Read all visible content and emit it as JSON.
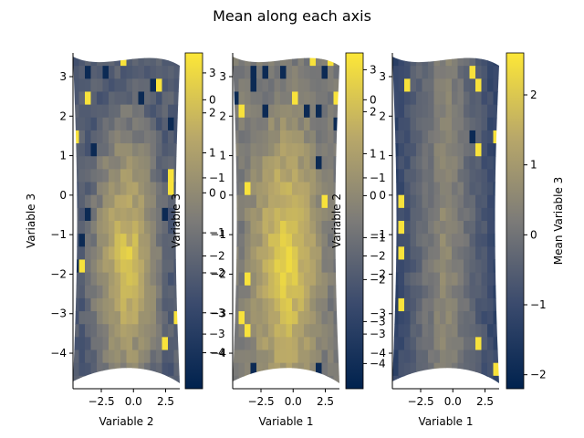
{
  "title": "Mean along each axis",
  "colors": {
    "colormap": "cividis",
    "stops": [
      "#00224e",
      "#3a4a6d",
      "#7c7b78",
      "#b9a869",
      "#fde737"
    ],
    "panel_base": [
      "#d7c05d",
      "#d8c15c",
      "#9a9070"
    ]
  },
  "chart_data": [
    {
      "type": "heatmap",
      "panel": 1,
      "xlabel": "Variable 2",
      "ylabel": "Variable 3",
      "x_ticks": [
        "−2.5",
        "0.0",
        "2.5"
      ],
      "x_tick_values": [
        -2.5,
        0.0,
        2.5
      ],
      "y_ticks": [
        "3",
        "2",
        "1",
        "0",
        "−1",
        "−2",
        "−3",
        "−4"
      ],
      "y_tick_values": [
        3,
        2,
        1,
        0,
        -1,
        -2,
        -3,
        -4
      ],
      "xlim": [
        -4.7,
        3.6
      ],
      "ylim": [
        -4.9,
        3.6
      ],
      "colorbar": {
        "label": "Variable 3",
        "ticks": [
          "3",
          "2",
          "1",
          "0",
          "−1",
          "−2",
          "−3",
          "−4"
        ],
        "tick_values": [
          3,
          2,
          1,
          0,
          -1,
          -2,
          -3,
          -4
        ],
        "range": [
          -4.9,
          3.5
        ],
        "overlap_ticks": [
          "0",
          "−1",
          "−2",
          "−3"
        ],
        "overlap_tick_values": [
          0,
          -1,
          -2,
          -3
        ],
        "overlap_range": [
          -3.7,
          0.6
        ]
      },
      "grid": false,
      "pattern": "bright yellow ellipse centered near (0, −1), fading to grey-olive at the edges with scattered dark outliers"
    },
    {
      "type": "heatmap",
      "panel": 2,
      "xlabel": "Variable 1",
      "ylabel": "",
      "x_ticks": [
        "−2.5",
        "0.0",
        "2.5"
      ],
      "x_tick_values": [
        -2.5,
        0.0,
        2.5
      ],
      "y_ticks": [
        "3",
        "2",
        "1",
        "0",
        "−1",
        "−2",
        "−3",
        "−4"
      ],
      "y_tick_values": [
        3,
        2,
        1,
        0,
        -1,
        -2,
        -3,
        -4
      ],
      "xlim": [
        -4.7,
        3.6
      ],
      "ylim": [
        -4.9,
        3.6
      ],
      "colorbar": {
        "label": "Variable 2",
        "ticks": [
          "3",
          "2",
          "1",
          "0",
          "−1",
          "−2",
          "−3",
          "−4"
        ],
        "tick_values": [
          3,
          2,
          1,
          0,
          -1,
          -2,
          -3,
          -4
        ],
        "range": [
          -4.6,
          3.4
        ],
        "overlap_ticks": [
          "0",
          "−1",
          "−2",
          "−3"
        ],
        "overlap_tick_values": [
          0,
          -1,
          -2,
          -3
        ],
        "overlap_range": [
          -3.7,
          0.6
        ]
      },
      "grid": false,
      "pattern": "bright yellow ellipse centered near (0, −1), brighter overall than panel 1"
    },
    {
      "type": "heatmap",
      "panel": 3,
      "xlabel": "Variable 1",
      "ylabel": "",
      "x_ticks": [
        "−2.5",
        "0.0",
        "2.5"
      ],
      "x_tick_values": [
        -2.5,
        0.0,
        2.5
      ],
      "y_ticks": [
        "3",
        "2",
        "1",
        "0",
        "−1",
        "−2",
        "−3",
        "−4"
      ],
      "y_tick_values": [
        3,
        2,
        1,
        0,
        -1,
        -2,
        -3,
        -4
      ],
      "xlim": [
        -4.7,
        3.6
      ],
      "ylim": [
        -4.9,
        3.6
      ],
      "colorbar": {
        "label": "Mean Variable 3",
        "ticks": [
          "2",
          "1",
          "0",
          "−1",
          "−2"
        ],
        "tick_values": [
          2,
          1,
          0,
          -1,
          -2
        ],
        "range": [
          -2.2,
          2.6
        ]
      },
      "grid": false,
      "pattern": "muted olive-grey center, darker blue-grey toward left/right edges, a few yellow and dark-blue outlier cells"
    }
  ]
}
